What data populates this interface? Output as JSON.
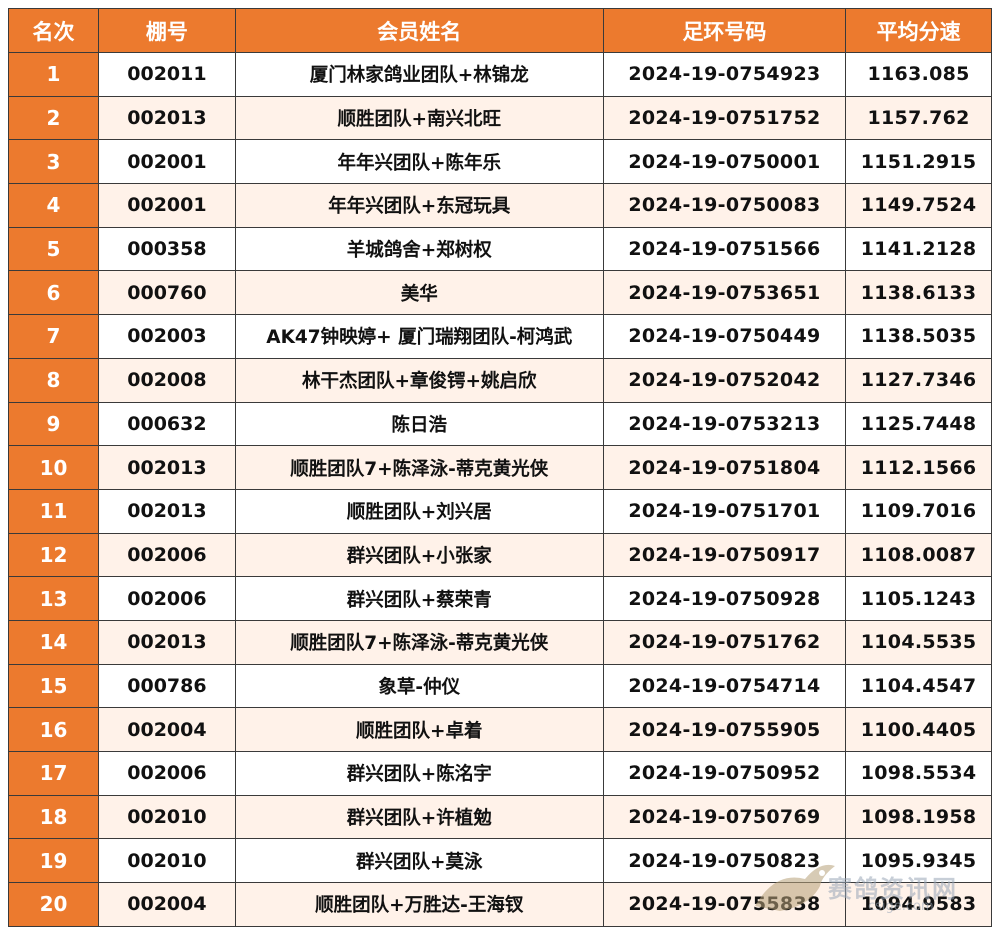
{
  "table": {
    "headers": [
      "名次",
      "棚号",
      "会员姓名",
      "足环号码",
      "平均分速"
    ],
    "rows": [
      {
        "rank": "1",
        "loft": "002011",
        "member": "厦门林家鸽业团队+林锦龙",
        "band": "2024-19-0754923",
        "speed": "1163.085"
      },
      {
        "rank": "2",
        "loft": "002013",
        "member": "顺胜团队+南兴北旺",
        "band": "2024-19-0751752",
        "speed": "1157.762"
      },
      {
        "rank": "3",
        "loft": "002001",
        "member": "年年兴团队+陈年乐",
        "band": "2024-19-0750001",
        "speed": "1151.2915"
      },
      {
        "rank": "4",
        "loft": "002001",
        "member": "年年兴团队+东冠玩具",
        "band": "2024-19-0750083",
        "speed": "1149.7524"
      },
      {
        "rank": "5",
        "loft": "000358",
        "member": "羊城鸽舍+郑树权",
        "band": "2024-19-0751566",
        "speed": "1141.2128"
      },
      {
        "rank": "6",
        "loft": "000760",
        "member": "美华",
        "band": "2024-19-0753651",
        "speed": "1138.6133"
      },
      {
        "rank": "7",
        "loft": "002003",
        "member": "AK47钟映婷+ 厦门瑞翔团队-柯鸿武",
        "band": "2024-19-0750449",
        "speed": "1138.5035"
      },
      {
        "rank": "8",
        "loft": "002008",
        "member": "林干杰团队+章俊锷+姚启欣",
        "band": "2024-19-0752042",
        "speed": "1127.7346"
      },
      {
        "rank": "9",
        "loft": "000632",
        "member": "陈日浩",
        "band": "2024-19-0753213",
        "speed": "1125.7448"
      },
      {
        "rank": "10",
        "loft": "002013",
        "member": "顺胜团队7+陈泽泳-蒂克黄光侠",
        "band": "2024-19-0751804",
        "speed": "1112.1566"
      },
      {
        "rank": "11",
        "loft": "002013",
        "member": "顺胜团队+刘兴居",
        "band": "2024-19-0751701",
        "speed": "1109.7016"
      },
      {
        "rank": "12",
        "loft": "002006",
        "member": "群兴团队+小张家",
        "band": "2024-19-0750917",
        "speed": "1108.0087"
      },
      {
        "rank": "13",
        "loft": "002006",
        "member": "群兴团队+蔡荣青",
        "band": "2024-19-0750928",
        "speed": "1105.1243"
      },
      {
        "rank": "14",
        "loft": "002013",
        "member": "顺胜团队7+陈泽泳-蒂克黄光侠",
        "band": "2024-19-0751762",
        "speed": "1104.5535"
      },
      {
        "rank": "15",
        "loft": "000786",
        "member": "象草-仲仪",
        "band": "2024-19-0754714",
        "speed": "1104.4547"
      },
      {
        "rank": "16",
        "loft": "002004",
        "member": "顺胜团队+卓着",
        "band": "2024-19-0755905",
        "speed": "1100.4405"
      },
      {
        "rank": "17",
        "loft": "002006",
        "member": "群兴团队+陈洺宇",
        "band": "2024-19-0750952",
        "speed": "1098.5534"
      },
      {
        "rank": "18",
        "loft": "002010",
        "member": "群兴团队+许植勉",
        "band": "2024-19-0750769",
        "speed": "1098.1958"
      },
      {
        "rank": "19",
        "loft": "002010",
        "member": "群兴团队+莫泳",
        "band": "2024-19-0750823",
        "speed": "1095.9345"
      },
      {
        "rank": "20",
        "loft": "002004",
        "member": "顺胜团队+万胜达-王海钗",
        "band": "2024-19-0755838",
        "speed": "1094.9583"
      }
    ]
  },
  "watermark": {
    "text": "赛鸽资讯网",
    "url": "csige.com"
  },
  "colors": {
    "header_bg": "#ec7a2e",
    "header_text": "#ffffff",
    "row_alt": "#fff2e9"
  }
}
